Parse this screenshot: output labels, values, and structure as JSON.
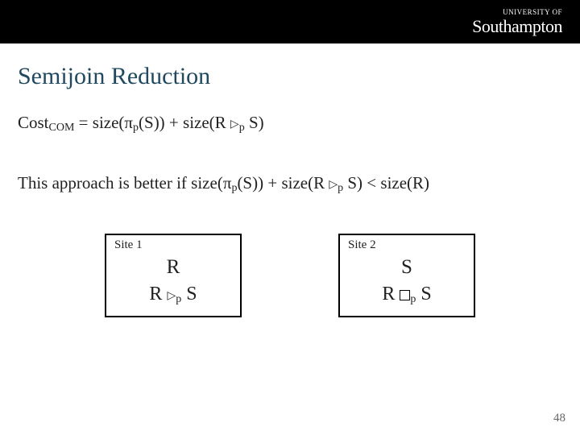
{
  "logo": {
    "top": "UNIVERSITY OF",
    "main": "Southampton"
  },
  "title": "Semijoin Reduction",
  "formula1": {
    "lhs": "Cost",
    "lhs_sub": "COM",
    "eq": " = size(π",
    "pi_sub": "p",
    "mid1": "(S)) + size(R ",
    "semi_sub": "p",
    "tail": " S)"
  },
  "formula2": {
    "lead": "This approach is better if size(π",
    "pi_sub": "p",
    "mid1": "(S)) + size(R ",
    "semi_sub": "p",
    "mid2": " S) < size(R)"
  },
  "site1": {
    "label": "Site 1",
    "row1": "R",
    "row2_left": "R ",
    "row2_sub": "p",
    "row2_right": " S"
  },
  "site2": {
    "label": "Site 2",
    "row1": "S",
    "row2_left": "R ",
    "row2_sub": "p",
    "row2_right": " S"
  },
  "page_number": "48",
  "colors": {
    "title": "#20495f",
    "topbar": "#000000",
    "text": "#222222"
  }
}
